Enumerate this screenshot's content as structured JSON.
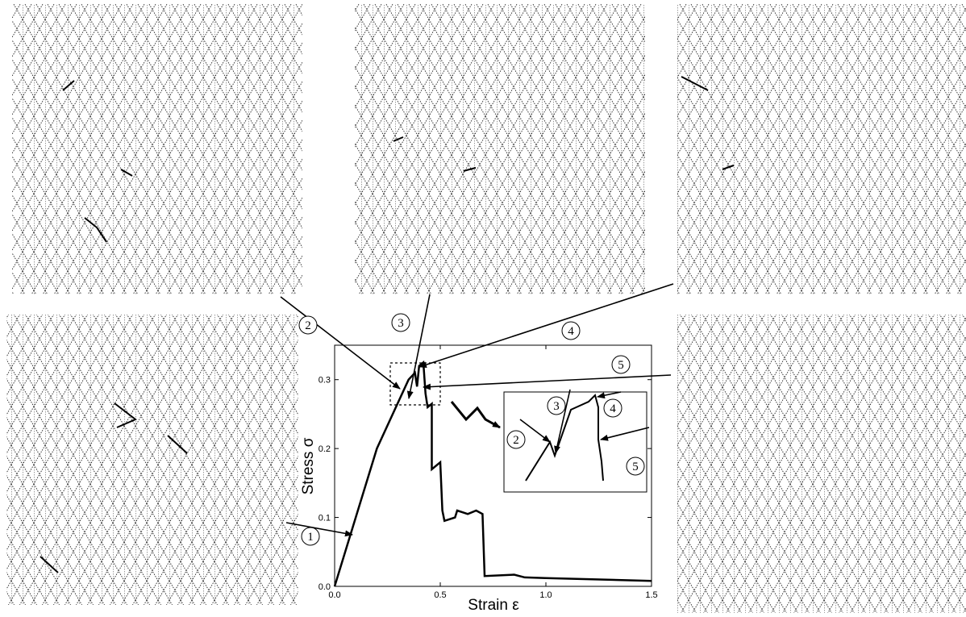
{
  "chart_data": {
    "type": "line",
    "xlabel": "Strain ε",
    "ylabel": "Stress σ",
    "x": [
      0,
      0.07,
      0.2,
      0.35,
      0.38,
      0.39,
      0.4,
      0.42,
      0.43,
      0.44,
      0.46,
      0.46,
      0.5,
      0.51,
      0.52,
      0.57,
      0.58,
      0.63,
      0.67,
      0.7,
      0.71,
      0.85,
      0.9,
      1.0,
      1.5
    ],
    "values": [
      0,
      0.07,
      0.2,
      0.3,
      0.31,
      0.29,
      0.32,
      0.325,
      0.28,
      0.26,
      0.265,
      0.17,
      0.18,
      0.11,
      0.095,
      0.1,
      0.11,
      0.105,
      0.11,
      0.105,
      0.015,
      0.017,
      0.013,
      0.012,
      0.008
    ],
    "color": "#000000",
    "xlim": [
      0,
      1.5
    ],
    "xticks": [
      {
        "value": 0,
        "label": "0.0"
      },
      {
        "value": 0.5,
        "label": "0.5"
      },
      {
        "value": 1,
        "label": "1.0"
      },
      {
        "value": 1.5,
        "label": "1.5"
      }
    ],
    "ylim": [
      0,
      0.35
    ],
    "yticks": [
      {
        "value": 0,
        "label": "0.0"
      },
      {
        "value": 0.1,
        "label": "0.1"
      },
      {
        "value": 0.2,
        "label": "0.2"
      },
      {
        "value": 0.3,
        "label": "0.3"
      }
    ],
    "annotations": [
      "1",
      "2",
      "3",
      "4",
      "5"
    ]
  }
}
